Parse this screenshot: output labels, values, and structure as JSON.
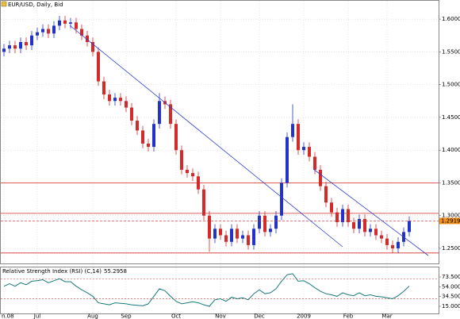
{
  "chart_data": [
    {
      "type": "candlestick",
      "title": "EUR/USD, Daily, Bid",
      "categories": [
        "n.08",
        null,
        null,
        null,
        null,
        null,
        "Jul",
        null,
        null,
        null,
        null,
        null,
        null,
        null,
        null,
        null,
        "Aug",
        null,
        null,
        null,
        null,
        null,
        "Sep",
        null,
        null,
        null,
        null,
        null,
        null,
        null,
        null,
        "Oct",
        null,
        null,
        null,
        null,
        null,
        null,
        null,
        "Nov",
        null,
        null,
        null,
        null,
        null,
        null,
        "Dec",
        null,
        null,
        null,
        null,
        null,
        null,
        null,
        "2009",
        null,
        null,
        null,
        null,
        null,
        null,
        null,
        "Feb",
        null,
        null,
        null,
        null,
        null,
        null,
        "Mar",
        null,
        null,
        null,
        null
      ],
      "open": [
        1.55,
        1.555,
        1.56,
        1.555,
        1.565,
        1.56,
        1.575,
        1.58,
        1.585,
        1.578,
        1.59,
        1.598,
        1.593,
        1.595,
        1.585,
        1.575,
        1.565,
        1.55,
        1.505,
        1.485,
        1.475,
        1.48,
        1.475,
        1.465,
        1.445,
        1.43,
        1.41,
        1.405,
        1.44,
        1.475,
        1.47,
        1.44,
        1.4,
        1.37,
        1.365,
        1.36,
        1.34,
        1.3,
        1.265,
        1.28,
        1.27,
        1.26,
        1.28,
        1.265,
        1.27,
        1.255,
        1.28,
        1.3,
        1.275,
        1.28,
        1.3,
        1.35,
        1.42,
        1.44,
        1.4,
        1.405,
        1.39,
        1.37,
        1.345,
        1.32,
        1.305,
        1.29,
        1.31,
        1.29,
        1.28,
        1.295,
        1.275,
        1.28,
        1.27,
        1.265,
        1.255,
        1.25,
        1.26,
        1.275
      ],
      "high": [
        1.562,
        1.567,
        1.567,
        1.572,
        1.572,
        1.582,
        1.587,
        1.592,
        1.592,
        1.597,
        1.605,
        1.605,
        1.602,
        1.602,
        1.592,
        1.582,
        1.572,
        1.557,
        1.512,
        1.492,
        1.487,
        1.487,
        1.482,
        1.472,
        1.452,
        1.437,
        1.417,
        1.447,
        1.487,
        1.482,
        1.477,
        1.447,
        1.407,
        1.377,
        1.372,
        1.367,
        1.347,
        1.307,
        1.287,
        1.287,
        1.277,
        1.287,
        1.287,
        1.277,
        1.277,
        1.287,
        1.307,
        1.307,
        1.287,
        1.307,
        1.357,
        1.427,
        1.47,
        1.447,
        1.412,
        1.412,
        1.397,
        1.377,
        1.352,
        1.327,
        1.312,
        1.317,
        1.317,
        1.297,
        1.302,
        1.302,
        1.287,
        1.287,
        1.277,
        1.272,
        1.262,
        1.267,
        1.282,
        1.299
      ],
      "low": [
        1.543,
        1.548,
        1.548,
        1.548,
        1.553,
        1.553,
        1.568,
        1.573,
        1.571,
        1.571,
        1.583,
        1.586,
        1.586,
        1.578,
        1.568,
        1.558,
        1.543,
        1.498,
        1.478,
        1.468,
        1.468,
        1.468,
        1.458,
        1.438,
        1.423,
        1.403,
        1.398,
        1.398,
        1.433,
        1.463,
        1.433,
        1.393,
        1.363,
        1.358,
        1.353,
        1.333,
        1.293,
        1.245,
        1.258,
        1.263,
        1.253,
        1.253,
        1.258,
        1.258,
        1.248,
        1.248,
        1.273,
        1.268,
        1.268,
        1.273,
        1.293,
        1.343,
        1.413,
        1.393,
        1.393,
        1.383,
        1.363,
        1.338,
        1.313,
        1.298,
        1.283,
        1.283,
        1.283,
        1.273,
        1.273,
        1.268,
        1.268,
        1.263,
        1.258,
        1.248,
        1.243,
        1.243,
        1.253,
        1.268
      ],
      "close": [
        1.555,
        1.56,
        1.555,
        1.565,
        1.56,
        1.575,
        1.58,
        1.585,
        1.578,
        1.59,
        1.598,
        1.593,
        1.595,
        1.585,
        1.575,
        1.565,
        1.55,
        1.505,
        1.485,
        1.475,
        1.48,
        1.475,
        1.465,
        1.445,
        1.43,
        1.41,
        1.405,
        1.44,
        1.475,
        1.47,
        1.44,
        1.4,
        1.37,
        1.365,
        1.36,
        1.34,
        1.3,
        1.265,
        1.28,
        1.27,
        1.26,
        1.28,
        1.265,
        1.27,
        1.255,
        1.28,
        1.3,
        1.275,
        1.28,
        1.3,
        1.35,
        1.42,
        1.44,
        1.4,
        1.405,
        1.39,
        1.37,
        1.345,
        1.32,
        1.305,
        1.29,
        1.31,
        1.29,
        1.28,
        1.295,
        1.275,
        1.28,
        1.27,
        1.265,
        1.255,
        1.25,
        1.26,
        1.275,
        1.2919
      ],
      "up_color": "#2233cc",
      "down_color": "#d42a2a",
      "ylim": [
        1.227,
        1.628
      ],
      "yticks": [
        {
          "value": 1.25,
          "label": "1.2500"
        },
        {
          "value": 1.3,
          "label": "1.3000"
        },
        {
          "value": 1.35,
          "label": "1.3500"
        },
        {
          "value": 1.4,
          "label": "1.4000"
        },
        {
          "value": 1.45,
          "label": "1.4500"
        },
        {
          "value": 1.5,
          "label": "1.5000"
        },
        {
          "value": 1.55,
          "label": "1.5500"
        },
        {
          "value": 1.6,
          "label": "1.6000"
        }
      ],
      "levels": [
        1.35,
        1.3035,
        1.243
      ],
      "level_color": "#d42a2a",
      "last_price_color": "#f0901a",
      "grid": true
    },
    {
      "type": "line",
      "title": "Relative Strength Index (RSI) (C,14)",
      "values": [
        55,
        60,
        55,
        62,
        58,
        65,
        66,
        68,
        62,
        66,
        70,
        64,
        64,
        55,
        48,
        42,
        35,
        22,
        20,
        18,
        22,
        21,
        20,
        18,
        17,
        16,
        20,
        35,
        50,
        46,
        35,
        25,
        20,
        22,
        24,
        22,
        18,
        15,
        28,
        30,
        25,
        33,
        30,
        32,
        28,
        40,
        48,
        40,
        42,
        50,
        65,
        78,
        80,
        65,
        66,
        60,
        52,
        45,
        40,
        38,
        35,
        42,
        38,
        36,
        42,
        36,
        38,
        35,
        34,
        32,
        30,
        36,
        45,
        55.2958
      ],
      "color": "#1a7a7a",
      "ylim": [
        0,
        90
      ],
      "yticks": [
        {
          "value": 15,
          "label": "15.0000"
        },
        {
          "value": 34.5,
          "label": "34.5000"
        },
        {
          "value": 54,
          "label": "54.0000"
        },
        {
          "value": 73.5,
          "label": "73.5000"
        }
      ],
      "levels": [
        70,
        30
      ],
      "level_color": "#d42a2a"
    }
  ]
}
